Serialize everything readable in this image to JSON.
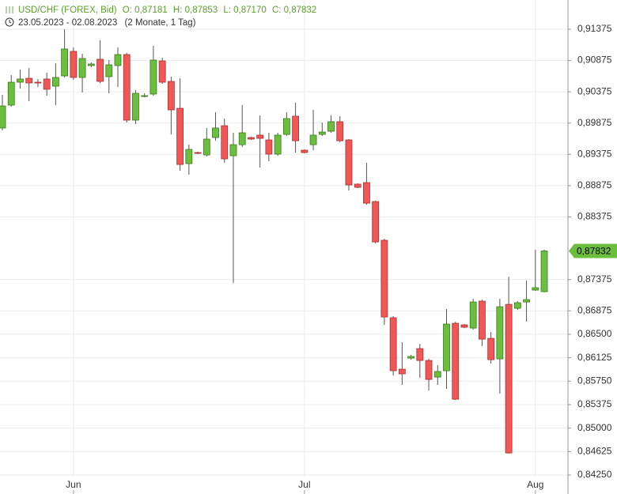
{
  "chart_data": {
    "type": "candlestick",
    "header": {
      "symbol": "USD/CHF (FOREX, Bid)",
      "open": "O: 0,87181",
      "high": "H: 0,87853",
      "low": "L: 0,87170",
      "close": "C: 0,87832",
      "range": "23.05.2023 - 02.08.2023",
      "duration": "(2 Monate, 1 Tag)"
    },
    "categories": [
      null,
      null,
      null,
      null,
      null,
      null,
      null,
      null,
      "Jun",
      null,
      null,
      null,
      null,
      null,
      null,
      null,
      null,
      null,
      null,
      null,
      null,
      null,
      null,
      null,
      null,
      null,
      null,
      null,
      null,
      null,
      null,
      null,
      null,
      null,
      "Jul",
      null,
      null,
      null,
      null,
      null,
      null,
      null,
      null,
      null,
      null,
      null,
      null,
      null,
      null,
      null,
      null,
      null,
      null,
      null,
      null,
      null,
      null,
      null,
      null,
      null,
      "Aug",
      null
    ],
    "open": [
      0.89796,
      0.90162,
      0.90528,
      0.90591,
      0.90528,
      0.90579,
      0.90465,
      0.90629,
      0.91021,
      0.90604,
      0.90794,
      0.90895,
      0.90617,
      0.90794,
      0.9097,
      0.89922,
      0.90301,
      0.90339,
      0.90869,
      0.90541,
      0.90111,
      0.89227,
      0.89404,
      0.89366,
      0.89644,
      0.89833,
      0.89353,
      0.8953,
      0.89644,
      0.89682,
      0.89606,
      0.89379,
      0.89694,
      0.89985,
      0.89442,
      0.8953,
      0.89694,
      0.89745,
      0.89897,
      0.89606,
      0.88899,
      0.88924,
      0.88621,
      0.88002,
      0.86764,
      0.85942,
      0.86119,
      0.86271,
      0.86081,
      0.85816,
      0.85917,
      0.86675,
      0.8665,
      0.86599,
      0.87029,
      0.86435,
      0.86107,
      0.86978,
      0.86915,
      0.87016,
      0.87206,
      0.87181
    ],
    "high": [
      0.90326,
      0.90642,
      0.9073,
      0.90756,
      0.90579,
      0.9068,
      0.90831,
      0.91375,
      0.91084,
      0.90983,
      0.90844,
      0.91198,
      0.90882,
      0.91084,
      0.90996,
      0.90402,
      0.90351,
      0.91109,
      0.9092,
      0.90617,
      0.90591,
      0.8953,
      0.89417,
      0.89796,
      0.90048,
      0.89947,
      0.8972,
      0.90162,
      0.89657,
      0.89998,
      0.8972,
      0.8972,
      0.90048,
      0.902,
      0.89454,
      0.90086,
      0.89884,
      0.89998,
      0.89985,
      0.89619,
      0.88911,
      0.8924,
      0.88633,
      0.88027,
      0.86789,
      0.86372,
      0.8617,
      0.86347,
      0.86107,
      0.86006,
      0.86902,
      0.867,
      0.86663,
      0.87067,
      0.87054,
      0.86536,
      0.87067,
      0.8742,
      0.87029,
      0.87357,
      0.8785,
      0.87853
    ],
    "low": [
      0.89758,
      0.90137,
      0.90427,
      0.90225,
      0.90452,
      0.90313,
      0.90162,
      0.90604,
      0.90566,
      0.90364,
      0.90768,
      0.90516,
      0.90351,
      0.90452,
      0.89884,
      0.89859,
      0.90288,
      0.90313,
      0.90503,
      0.89694,
      0.89113,
      0.8905,
      0.89379,
      0.89341,
      0.89593,
      0.8924,
      0.87319,
      0.89492,
      0.89606,
      0.89164,
      0.89265,
      0.89353,
      0.89669,
      0.89404,
      0.89391,
      0.89442,
      0.89669,
      0.8972,
      0.89568,
      0.88797,
      0.88835,
      0.8857,
      0.87951,
      0.8665,
      0.85841,
      0.8569,
      0.86094,
      0.85803,
      0.85601,
      0.8569,
      0.85627,
      0.8545,
      0.86599,
      0.86574,
      0.86309,
      0.86031,
      0.85551,
      0.84591,
      0.8689,
      0.867,
      0.87193,
      0.8717
    ],
    "close": [
      0.90149,
      0.90528,
      0.90579,
      0.90516,
      0.90516,
      0.90415,
      0.90604,
      0.91059,
      0.90604,
      0.90907,
      0.90819,
      0.90541,
      0.90806,
      0.9097,
      0.89922,
      0.90351,
      0.90313,
      0.90882,
      0.90528,
      0.90086,
      0.89214,
      0.89454,
      0.89391,
      0.89619,
      0.89796,
      0.89303,
      0.8953,
      0.8972,
      0.89619,
      0.89631,
      0.89379,
      0.89682,
      0.89947,
      0.89593,
      0.89404,
      0.89682,
      0.89732,
      0.89897,
      0.89593,
      0.88886,
      0.88848,
      0.88595,
      0.87976,
      0.86776,
      0.85917,
      0.85867,
      0.86145,
      0.86081,
      0.85778,
      0.85905,
      0.86663,
      0.85462,
      0.86612,
      0.87016,
      0.86422,
      0.86094,
      0.8694,
      0.84603,
      0.87004,
      0.87054,
      0.87244,
      0.87832
    ],
    "up_color": "#6bbf3f",
    "down_color": "#f25757",
    "last_price": {
      "value": 0.87832,
      "label": "0,87832"
    },
    "ylim": [
      0.84225,
      0.91842
    ],
    "yticks": [
      {
        "value": 0.91375,
        "label": "0,91375"
      },
      {
        "value": 0.90875,
        "label": "0,90875"
      },
      {
        "value": 0.90375,
        "label": "0,90375"
      },
      {
        "value": 0.89875,
        "label": "0,89875"
      },
      {
        "value": 0.89375,
        "label": "0,89375"
      },
      {
        "value": 0.88875,
        "label": "0,88875"
      },
      {
        "value": 0.88375,
        "label": "0,88375"
      },
      {
        "value": 0.87375,
        "label": "0,87375"
      },
      {
        "value": 0.86875,
        "label": "0,86875"
      },
      {
        "value": 0.865,
        "label": "0,86500"
      },
      {
        "value": 0.86125,
        "label": "0,86125"
      },
      {
        "value": 0.8575,
        "label": "0,85750"
      },
      {
        "value": 0.85375,
        "label": "0,85375"
      },
      {
        "value": 0.85,
        "label": "0,85000"
      },
      {
        "value": 0.84625,
        "label": "0,84625"
      },
      {
        "value": 0.8425,
        "label": "0,84250"
      }
    ],
    "grid": true
  }
}
